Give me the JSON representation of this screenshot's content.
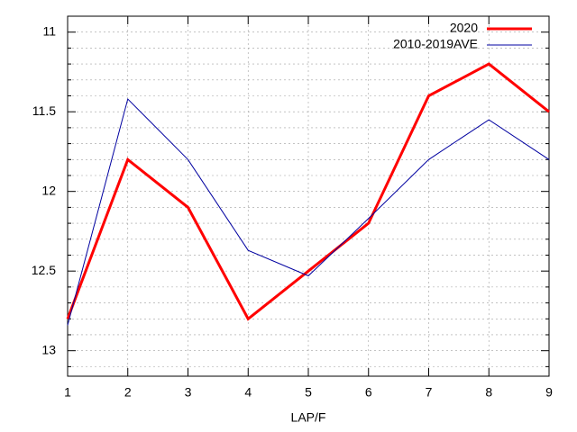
{
  "chart_data": {
    "type": "line",
    "xlabel": "LAP/F",
    "x": [
      1,
      2,
      3,
      4,
      5,
      6,
      7,
      8,
      9
    ],
    "series": [
      {
        "name": "2020",
        "color": "#ff0000",
        "width": 3,
        "values": [
          12.8,
          11.8,
          12.1,
          12.8,
          12.5,
          12.2,
          11.4,
          11.2,
          11.5
        ]
      },
      {
        "name": "2010-2019AVE",
        "color": "#0000a0",
        "width": 1,
        "values": [
          12.84,
          11.42,
          11.8,
          12.37,
          12.53,
          12.17,
          11.8,
          11.55,
          11.8
        ]
      }
    ],
    "xlim": [
      1,
      9
    ],
    "xticks": [
      1,
      2,
      3,
      4,
      5,
      6,
      7,
      8,
      9
    ],
    "ylim": [
      10.9,
      13.16
    ],
    "yticks": [
      11,
      11.5,
      12,
      12.5,
      13
    ],
    "y_reversed": true,
    "y_minor_per_major": 5,
    "grid": true,
    "legend": "top-right"
  }
}
